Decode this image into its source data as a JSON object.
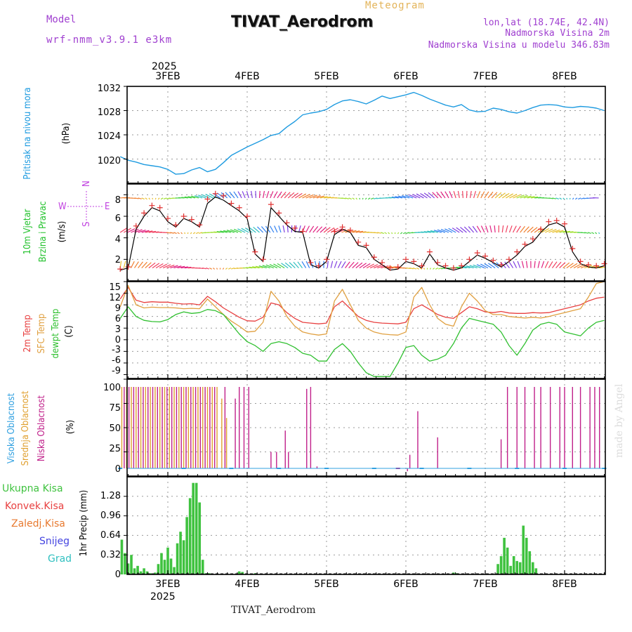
{
  "header": {
    "model_label": "Model",
    "model_value": "wrf-nmm_v3.9.1 e3km",
    "title": "TIVAT_Aerodrom",
    "meteogram_label": "Meteogram",
    "lonlat": "lon,lat (18.74E, 42.4N)",
    "altitude": "Nadmorska Visina 2m",
    "model_altitude": "Nadmorska Visina u modelu 346.83m"
  },
  "footer": {
    "station": "TIVAT_Aerodrom"
  },
  "credit": "made by Angel",
  "colors": {
    "pressure": "#1e9be0",
    "wind_obs": "#e03030",
    "wind_line": "#000000",
    "temp2m": "#e84040",
    "sfc": "#e0a040",
    "dew": "#30c030",
    "high_cloud": "#30a0e0",
    "mid_cloud": "#e0a030",
    "low_cloud": "#c0208a",
    "precip": "#3fc23f",
    "axis_purple": "#c040e0"
  },
  "chart_data": [
    {
      "type": "line",
      "panel": "pressure",
      "ylabel": "Pritisak na nivou mora",
      "unit": "(hPa)",
      "ylim": [
        1016,
        1032
      ],
      "yticks": [
        "1020",
        "1024",
        "1028",
        "1032"
      ],
      "x_days": [
        "3FEB",
        "4FEB",
        "5FEB",
        "6FEB",
        "7FEB",
        "8FEB"
      ],
      "top_year": "2025",
      "t": [
        -0.6,
        -0.5,
        -0.4,
        -0.3,
        -0.2,
        -0.1,
        0.0,
        0.1,
        0.2,
        0.3,
        0.4,
        0.5,
        0.6,
        0.7,
        0.8,
        0.9,
        1.0,
        1.1,
        1.2,
        1.3,
        1.4,
        1.5,
        1.6,
        1.7,
        1.8,
        1.9,
        2.0,
        2.1,
        2.2,
        2.3,
        2.4,
        2.5,
        2.6,
        2.7,
        2.8,
        2.9,
        3.0,
        3.1,
        3.2,
        3.3,
        3.4,
        3.5,
        3.6,
        3.7,
        3.8,
        3.9,
        4.0,
        4.1,
        4.2,
        4.3,
        4.4,
        4.5,
        4.6,
        4.7,
        4.8,
        4.9,
        5.0,
        5.1,
        5.2,
        5.3,
        5.4,
        5.5
      ],
      "values": [
        1020.4,
        1019.8,
        1019.5,
        1019.1,
        1018.9,
        1018.7,
        1018.3,
        1017.5,
        1017.6,
        1018.2,
        1018.6,
        1017.9,
        1018.3,
        1019.4,
        1020.6,
        1021.3,
        1022.0,
        1022.6,
        1023.2,
        1023.9,
        1024.2,
        1025.3,
        1026.2,
        1027.3,
        1027.6,
        1027.8,
        1028.2,
        1029.0,
        1029.6,
        1029.8,
        1029.5,
        1029.1,
        1029.7,
        1030.4,
        1030.0,
        1030.3,
        1030.6,
        1031.0,
        1030.5,
        1029.9,
        1029.4,
        1028.9,
        1028.6,
        1029.0,
        1028.1,
        1027.8,
        1027.9,
        1028.4,
        1028.2,
        1027.8,
        1027.6,
        1028.0,
        1028.5,
        1028.9,
        1029.0,
        1028.9,
        1028.6,
        1028.5,
        1028.7,
        1028.6,
        1028.4,
        1028.0
      ]
    },
    {
      "type": "line",
      "panel": "wind",
      "ylabel": "10m Vjetar",
      "ylabel2": "Brzina i Pravac",
      "unit": "(m/s)",
      "ylim": [
        0,
        9
      ],
      "yticks": [
        "2",
        "4",
        "6",
        "8"
      ],
      "compass": {
        "n": "N",
        "s": "S",
        "e": "E",
        "w": "W"
      },
      "t": [
        -0.6,
        -0.5,
        -0.4,
        -0.3,
        -0.2,
        -0.1,
        0.0,
        0.1,
        0.2,
        0.3,
        0.4,
        0.5,
        0.6,
        0.7,
        0.8,
        0.9,
        1.0,
        1.1,
        1.2,
        1.3,
        1.4,
        1.5,
        1.6,
        1.7,
        1.8,
        1.9,
        2.0,
        2.1,
        2.2,
        2.3,
        2.4,
        2.5,
        2.6,
        2.7,
        2.8,
        2.9,
        3.0,
        3.1,
        3.2,
        3.3,
        3.4,
        3.5,
        3.6,
        3.7,
        3.8,
        3.9,
        4.0,
        4.1,
        4.2,
        4.3,
        4.4,
        4.5,
        4.6,
        4.7,
        4.8,
        4.9,
        5.0,
        5.1,
        5.2,
        5.3,
        5.4,
        5.5
      ],
      "values": [
        1.0,
        1.2,
        4.8,
        6.0,
        6.8,
        6.5,
        5.5,
        5.0,
        5.8,
        5.5,
        5.0,
        7.2,
        7.8,
        7.5,
        7.0,
        6.5,
        5.8,
        2.5,
        1.8,
        6.8,
        6.0,
        5.2,
        4.6,
        4.5,
        1.5,
        1.2,
        1.8,
        4.3,
        4.8,
        4.5,
        3.3,
        3.1,
        2.0,
        1.5,
        1.0,
        1.1,
        1.8,
        1.6,
        1.2,
        2.5,
        1.5,
        1.2,
        1.0,
        1.2,
        1.8,
        2.4,
        2.1,
        1.7,
        1.3,
        1.8,
        2.4,
        3.2,
        3.6,
        4.5,
        5.2,
        5.4,
        5.0,
        2.7,
        1.6,
        1.3,
        1.2,
        1.4
      ],
      "obs_values": [
        1.1,
        1.3,
        5.1,
        6.3,
        7.0,
        6.8,
        5.8,
        5.2,
        6.0,
        5.7,
        5.2,
        7.6,
        8.1,
        7.9,
        7.2,
        6.8,
        6.0,
        2.7,
        2.0,
        7.1,
        6.3,
        5.4,
        4.9,
        4.6,
        1.7,
        1.4,
        2.0,
        4.6,
        5.0,
        4.7,
        3.6,
        3.3,
        2.2,
        1.7,
        1.2,
        1.3,
        2.0,
        1.8,
        1.4,
        2.7,
        1.7,
        1.4,
        1.2,
        1.4,
        2.0,
        2.6,
        2.3,
        1.9,
        1.5,
        2.0,
        2.7,
        3.4,
        3.9,
        4.8,
        5.5,
        5.6,
        5.3,
        3.0,
        1.8,
        1.5,
        1.4,
        1.6
      ]
    },
    {
      "type": "line",
      "panel": "temperature",
      "ylabel": "2m Temp",
      "ylabel2": "SFC Temp",
      "ylabel3": "dewpt Temp",
      "unit": "(C)",
      "ylim": [
        -10,
        15
      ],
      "yticks": [
        "-9",
        "-6",
        "-3",
        "0",
        "3",
        "6",
        "9",
        "12",
        "15"
      ],
      "t": [
        -0.6,
        -0.5,
        -0.4,
        -0.3,
        -0.2,
        -0.1,
        0.0,
        0.1,
        0.2,
        0.3,
        0.4,
        0.5,
        0.6,
        0.7,
        0.8,
        0.9,
        1.0,
        1.1,
        1.2,
        1.3,
        1.4,
        1.5,
        1.6,
        1.7,
        1.8,
        1.9,
        2.0,
        2.1,
        2.2,
        2.3,
        2.4,
        2.5,
        2.6,
        2.7,
        2.8,
        2.9,
        3.0,
        3.1,
        3.2,
        3.3,
        3.4,
        3.5,
        3.6,
        3.7,
        3.8,
        3.9,
        4.0,
        4.1,
        4.2,
        4.3,
        4.4,
        4.5,
        4.6,
        4.7,
        4.8,
        4.9,
        5.0,
        5.1,
        5.2,
        5.3,
        5.4,
        5.5
      ],
      "series": [
        {
          "name": "2m Temp",
          "values": [
            10.5,
            13.5,
            10.2,
            9.6,
            9.8,
            9.7,
            9.7,
            9.4,
            9.2,
            9.3,
            9.0,
            11.2,
            9.8,
            8.2,
            7.0,
            5.8,
            4.9,
            4.8,
            5.8,
            9.5,
            9.0,
            7.0,
            5.5,
            4.5,
            4.3,
            4.1,
            4.3,
            8.5,
            10.0,
            8.0,
            6.0,
            5.0,
            4.5,
            4.3,
            4.2,
            4.1,
            4.5,
            8.0,
            9.0,
            7.8,
            6.5,
            5.8,
            5.5,
            7.0,
            8.5,
            8.0,
            7.2,
            7.0,
            7.3,
            6.9,
            6.8,
            6.8,
            7.0,
            6.9,
            7.0,
            7.5,
            8.0,
            8.5,
            9.0,
            10.0,
            10.7,
            11.0
          ]
        },
        {
          "name": "SFC Temp",
          "values": [
            8.5,
            14.0,
            9.0,
            8.2,
            8.4,
            8.3,
            8.3,
            8.2,
            8.0,
            8.1,
            8.0,
            10.5,
            8.5,
            6.5,
            4.8,
            3.5,
            2.0,
            2.2,
            4.5,
            12.5,
            10.0,
            6.0,
            3.5,
            2.0,
            1.5,
            1.2,
            1.5,
            10.0,
            13.0,
            9.0,
            5.0,
            3.0,
            2.0,
            1.5,
            1.3,
            1.2,
            2.0,
            11.0,
            13.5,
            9.0,
            5.5,
            4.0,
            3.5,
            8.5,
            12.0,
            10.0,
            7.5,
            6.5,
            6.5,
            6.0,
            5.8,
            5.6,
            5.8,
            5.6,
            6.0,
            6.5,
            7.0,
            7.5,
            8.0,
            11.0,
            14.5,
            15.0
          ]
        },
        {
          "name": "dewpt Temp",
          "values": [
            5.5,
            8.5,
            6.0,
            5.0,
            4.7,
            4.6,
            5.2,
            6.5,
            7.2,
            6.8,
            7.0,
            7.8,
            7.5,
            6.5,
            4.0,
            1.5,
            -0.5,
            -1.5,
            -3.0,
            -1.0,
            -0.5,
            -1.0,
            -2.0,
            -3.5,
            -4.0,
            -5.5,
            -5.5,
            -2.5,
            -1.0,
            -3.0,
            -6.0,
            -8.5,
            -9.5,
            -9.5,
            -9.5,
            -6.0,
            -2.0,
            -1.5,
            -4.0,
            -5.5,
            -5.0,
            -4.0,
            -1.0,
            3.0,
            5.5,
            5.0,
            4.5,
            4.0,
            2.0,
            -1.5,
            -4.0,
            -1.0,
            2.5,
            4.0,
            4.5,
            4.0,
            2.0,
            1.5,
            1.0,
            3.0,
            4.5,
            5.0
          ]
        }
      ]
    },
    {
      "type": "bar",
      "panel": "clouds",
      "ylabel": "Visoka Oblacnost",
      "ylabel2": "Srednja Oblacnost",
      "ylabel3": "Niska Oblacnost",
      "unit": "(%)",
      "ylim": [
        0,
        100
      ],
      "yticks": [
        "0",
        "25",
        "50",
        "75",
        "100"
      ],
      "series": [
        {
          "name": "Srednja Oblacnost",
          "t": [
            -0.58,
            -0.52,
            -0.46,
            -0.4,
            -0.34,
            -0.28,
            -0.22,
            -0.16,
            -0.1,
            -0.04,
            0.02,
            0.08,
            0.14,
            0.2,
            0.26,
            0.32,
            0.38,
            0.44,
            0.5,
            0.56,
            0.62,
            0.68,
            0.74
          ],
          "values": [
            100,
            100,
            100,
            100,
            100,
            100,
            100,
            100,
            100,
            100,
            100,
            100,
            100,
            100,
            100,
            100,
            100,
            100,
            100,
            100,
            100,
            80,
            60
          ]
        },
        {
          "name": "Niska Oblacnost",
          "t": [
            -0.55,
            -0.49,
            -0.43,
            -0.37,
            -0.31,
            -0.25,
            -0.19,
            -0.13,
            -0.07,
            -0.01,
            0.05,
            0.11,
            0.17,
            0.23,
            0.29,
            0.35,
            0.41,
            0.47,
            0.53,
            0.59,
            0.72,
            0.85,
            0.9,
            0.96,
            1.02,
            1.3,
            1.37,
            1.48,
            1.52,
            1.75,
            1.8,
            1.88,
            2.1,
            2.9,
            3.02,
            3.05,
            3.15,
            3.4,
            4.2,
            4.28,
            4.4,
            4.5,
            4.62,
            4.7,
            4.82,
            4.94,
            5.0,
            5.1,
            5.2,
            5.32,
            5.38,
            5.44
          ],
          "values": [
            100,
            100,
            100,
            100,
            100,
            100,
            100,
            100,
            100,
            100,
            100,
            100,
            100,
            100,
            100,
            100,
            100,
            100,
            100,
            100,
            100,
            80,
            100,
            100,
            100,
            25,
            25,
            47,
            25,
            90,
            95,
            10,
            8,
            1,
            5,
            22,
            67,
            40,
            38,
            100,
            100,
            100,
            100,
            100,
            100,
            100,
            100,
            100,
            100,
            100,
            100,
            100
          ]
        },
        {
          "name": "Visoka Oblacnost",
          "t": [
            -0.6,
            0.2,
            0.8,
            1.4,
            2.0,
            2.6,
            3.2,
            3.8,
            4.4,
            5.0,
            5.5
          ],
          "values": [
            1,
            1,
            1,
            0,
            0,
            0,
            0,
            0,
            1,
            1,
            1
          ]
        }
      ]
    },
    {
      "type": "bar",
      "panel": "precipitation",
      "ylabel": "1hr Precip (mm)",
      "ylim": [
        0,
        1.6
      ],
      "yticks": [
        "0",
        "0.32",
        "0.64",
        "0.96",
        "1.28"
      ],
      "x_days": [
        "3FEB",
        "4FEB",
        "5FEB",
        "6FEB",
        "7FEB",
        "8FEB"
      ],
      "bottom_year": "2025",
      "legend": [
        "Ukupna Kisa",
        "Konvek.Kisa",
        "Zaledj.Kisa",
        "Snijeg",
        "Grad"
      ],
      "t": [
        -0.58,
        -0.54,
        -0.5,
        -0.46,
        -0.42,
        -0.38,
        -0.34,
        -0.3,
        -0.26,
        -0.22,
        -0.16,
        -0.12,
        -0.08,
        -0.04,
        0.0,
        0.04,
        0.08,
        0.12,
        0.16,
        0.2,
        0.24,
        0.28,
        0.32,
        0.36,
        0.4,
        0.44,
        0.48,
        0.52,
        0.9,
        0.94,
        1.1,
        3.6,
        3.64,
        4.16,
        4.2,
        4.24,
        4.28,
        4.32,
        4.36,
        4.4,
        4.44,
        4.48,
        4.52,
        4.56,
        4.6,
        4.64
      ],
      "values": [
        0.57,
        0.35,
        0.18,
        0.32,
        0.1,
        0.14,
        0.05,
        0.1,
        0.05,
        0.02,
        0.03,
        0.17,
        0.35,
        0.24,
        0.44,
        0.26,
        0.12,
        0.51,
        0.7,
        0.56,
        0.94,
        1.25,
        1.5,
        1.5,
        1.18,
        0.24,
        0.02,
        0.02,
        0.05,
        0.04,
        0.02,
        0.03,
        0.02,
        0.17,
        0.3,
        0.6,
        0.44,
        0.14,
        0.3,
        0.22,
        0.2,
        0.8,
        0.6,
        0.38,
        0.2,
        0.1
      ]
    }
  ]
}
